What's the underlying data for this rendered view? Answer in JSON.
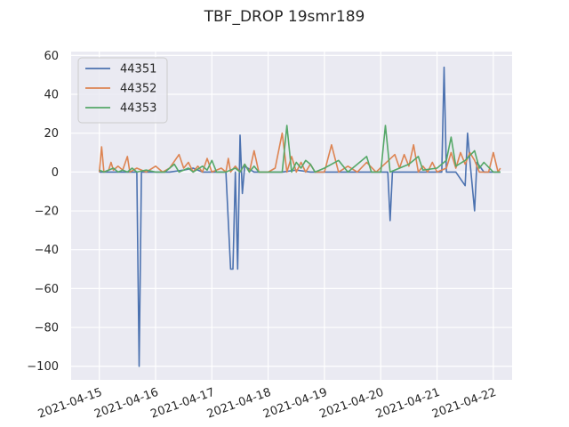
{
  "chart_data": {
    "type": "line",
    "title": "TBF_DROP 19smr189",
    "xlabel": "",
    "ylabel": "",
    "x_range": [
      "2021-04-14T12:00",
      "2021-04-22T08:00"
    ],
    "ylim": [
      -107,
      62
    ],
    "x_ticks": [
      "2021-04-15",
      "2021-04-16",
      "2021-04-17",
      "2021-04-18",
      "2021-04-19",
      "2021-04-20",
      "2021-04-21",
      "2021-04-22"
    ],
    "y_ticks": [
      60,
      40,
      20,
      0,
      -20,
      -40,
      -60,
      -80,
      -100
    ],
    "y_tick_labels": [
      "60",
      "40",
      "20",
      "0",
      "−20",
      "−40",
      "−60",
      "−80",
      "−100"
    ],
    "grid": true,
    "legend_position": "top-left",
    "background_color": "#eaeaf2",
    "series": [
      {
        "name": "44351",
        "color": "#4c72b0",
        "points": [
          [
            "2021-04-15T00:00",
            0
          ],
          [
            "2021-04-15T02:00",
            0
          ],
          [
            "2021-04-15T04:00",
            0
          ],
          [
            "2021-04-15T06:00",
            0
          ],
          [
            "2021-04-15T08:00",
            0
          ],
          [
            "2021-04-15T10:00",
            0
          ],
          [
            "2021-04-15T12:00",
            0
          ],
          [
            "2021-04-15T14:00",
            0
          ],
          [
            "2021-04-15T15:00",
            0
          ],
          [
            "2021-04-15T16:00",
            0
          ],
          [
            "2021-04-15T17:00",
            -100
          ],
          [
            "2021-04-15T18:00",
            0
          ],
          [
            "2021-04-15T20:00",
            0
          ],
          [
            "2021-04-16T00:00",
            0
          ],
          [
            "2021-04-16T06:00",
            0
          ],
          [
            "2021-04-16T12:00",
            1
          ],
          [
            "2021-04-16T16:00",
            2
          ],
          [
            "2021-04-16T20:00",
            0
          ],
          [
            "2021-04-17T00:00",
            0
          ],
          [
            "2021-04-17T06:00",
            0
          ],
          [
            "2021-04-17T08:00",
            -50
          ],
          [
            "2021-04-17T09:00",
            -50
          ],
          [
            "2021-04-17T10:00",
            0
          ],
          [
            "2021-04-17T11:00",
            -50
          ],
          [
            "2021-04-17T12:00",
            19
          ],
          [
            "2021-04-17T13:00",
            -11
          ],
          [
            "2021-04-17T14:00",
            3
          ],
          [
            "2021-04-17T18:00",
            0
          ],
          [
            "2021-04-18T00:00",
            0
          ],
          [
            "2021-04-18T06:00",
            0
          ],
          [
            "2021-04-18T12:00",
            1
          ],
          [
            "2021-04-18T18:00",
            0
          ],
          [
            "2021-04-19T00:00",
            0
          ],
          [
            "2021-04-19T12:00",
            0
          ],
          [
            "2021-04-20T00:00",
            0
          ],
          [
            "2021-04-20T03:00",
            0
          ],
          [
            "2021-04-20T04:00",
            -25
          ],
          [
            "2021-04-20T05:00",
            0
          ],
          [
            "2021-04-20T12:00",
            0
          ],
          [
            "2021-04-20T18:00",
            0
          ],
          [
            "2021-04-21T00:00",
            0
          ],
          [
            "2021-04-21T02:00",
            0
          ],
          [
            "2021-04-21T03:00",
            54
          ],
          [
            "2021-04-21T04:00",
            0
          ],
          [
            "2021-04-21T08:00",
            0
          ],
          [
            "2021-04-21T12:00",
            -7
          ],
          [
            "2021-04-21T13:00",
            20
          ],
          [
            "2021-04-21T14:00",
            6
          ],
          [
            "2021-04-21T16:00",
            -20
          ],
          [
            "2021-04-21T17:00",
            5
          ],
          [
            "2021-04-21T20:00",
            0
          ],
          [
            "2021-04-22T00:00",
            0
          ],
          [
            "2021-04-22T03:00",
            0
          ]
        ]
      },
      {
        "name": "44352",
        "color": "#dd8452",
        "points": [
          [
            "2021-04-15T00:00",
            0
          ],
          [
            "2021-04-15T01:00",
            13
          ],
          [
            "2021-04-15T02:00",
            0
          ],
          [
            "2021-04-15T04:00",
            1
          ],
          [
            "2021-04-15T05:00",
            5
          ],
          [
            "2021-04-15T06:00",
            1
          ],
          [
            "2021-04-15T08:00",
            3
          ],
          [
            "2021-04-15T10:00",
            1
          ],
          [
            "2021-04-15T12:00",
            8
          ],
          [
            "2021-04-15T13:00",
            0
          ],
          [
            "2021-04-15T16:00",
            2
          ],
          [
            "2021-04-15T20:00",
            0
          ],
          [
            "2021-04-16T00:00",
            3
          ],
          [
            "2021-04-16T03:00",
            0
          ],
          [
            "2021-04-16T06:00",
            2
          ],
          [
            "2021-04-16T10:00",
            9
          ],
          [
            "2021-04-16T12:00",
            2
          ],
          [
            "2021-04-16T14:00",
            5
          ],
          [
            "2021-04-16T16:00",
            0
          ],
          [
            "2021-04-16T18:00",
            3
          ],
          [
            "2021-04-16T20:00",
            0
          ],
          [
            "2021-04-16T22:00",
            7
          ],
          [
            "2021-04-17T00:00",
            0
          ],
          [
            "2021-04-17T04:00",
            2
          ],
          [
            "2021-04-17T06:00",
            0
          ],
          [
            "2021-04-17T07:00",
            7
          ],
          [
            "2021-04-17T08:00",
            0
          ],
          [
            "2021-04-17T10:00",
            3
          ],
          [
            "2021-04-17T12:00",
            0
          ],
          [
            "2021-04-17T14:00",
            4
          ],
          [
            "2021-04-17T16:00",
            0
          ],
          [
            "2021-04-17T18:00",
            11
          ],
          [
            "2021-04-17T20:00",
            0
          ],
          [
            "2021-04-18T00:00",
            0
          ],
          [
            "2021-04-18T03:00",
            2
          ],
          [
            "2021-04-18T06:00",
            20
          ],
          [
            "2021-04-18T08:00",
            0
          ],
          [
            "2021-04-18T10:00",
            8
          ],
          [
            "2021-04-18T12:00",
            0
          ],
          [
            "2021-04-18T14:00",
            5
          ],
          [
            "2021-04-18T16:00",
            0
          ],
          [
            "2021-04-18T18:00",
            4
          ],
          [
            "2021-04-18T20:00",
            0
          ],
          [
            "2021-04-19T00:00",
            0
          ],
          [
            "2021-04-19T03:00",
            14
          ],
          [
            "2021-04-19T06:00",
            0
          ],
          [
            "2021-04-19T10:00",
            3
          ],
          [
            "2021-04-19T14:00",
            0
          ],
          [
            "2021-04-19T18:00",
            5
          ],
          [
            "2021-04-19T22:00",
            0
          ],
          [
            "2021-04-20T06:00",
            9
          ],
          [
            "2021-04-20T08:00",
            2
          ],
          [
            "2021-04-20T10:00",
            9
          ],
          [
            "2021-04-20T12:00",
            3
          ],
          [
            "2021-04-20T14:00",
            14
          ],
          [
            "2021-04-20T16:00",
            0
          ],
          [
            "2021-04-20T18:00",
            3
          ],
          [
            "2021-04-20T20:00",
            0
          ],
          [
            "2021-04-20T22:00",
            5
          ],
          [
            "2021-04-21T00:00",
            0
          ],
          [
            "2021-04-21T04:00",
            2
          ],
          [
            "2021-04-21T06:00",
            10
          ],
          [
            "2021-04-21T08:00",
            2
          ],
          [
            "2021-04-21T10:00",
            10
          ],
          [
            "2021-04-21T12:00",
            4
          ],
          [
            "2021-04-21T14:00",
            10
          ],
          [
            "2021-04-21T16:00",
            6
          ],
          [
            "2021-04-21T18:00",
            0
          ],
          [
            "2021-04-21T22:00",
            0
          ],
          [
            "2021-04-22T00:00",
            10
          ],
          [
            "2021-04-22T02:00",
            0
          ],
          [
            "2021-04-22T03:00",
            2
          ]
        ]
      },
      {
        "name": "44353",
        "color": "#55a868",
        "points": [
          [
            "2021-04-15T00:00",
            1
          ],
          [
            "2021-04-15T02:00",
            0
          ],
          [
            "2021-04-15T04:00",
            1
          ],
          [
            "2021-04-15T06:00",
            2
          ],
          [
            "2021-04-15T08:00",
            0
          ],
          [
            "2021-04-15T10:00",
            1
          ],
          [
            "2021-04-15T12:00",
            0
          ],
          [
            "2021-04-15T14:00",
            2
          ],
          [
            "2021-04-15T16:00",
            0
          ],
          [
            "2021-04-15T20:00",
            1
          ],
          [
            "2021-04-16T00:00",
            0
          ],
          [
            "2021-04-16T04:00",
            0
          ],
          [
            "2021-04-16T08:00",
            4
          ],
          [
            "2021-04-16T10:00",
            0
          ],
          [
            "2021-04-16T14:00",
            2
          ],
          [
            "2021-04-16T16:00",
            0
          ],
          [
            "2021-04-16T20:00",
            3
          ],
          [
            "2021-04-16T22:00",
            1
          ],
          [
            "2021-04-17T00:00",
            6
          ],
          [
            "2021-04-17T02:00",
            0
          ],
          [
            "2021-04-17T06:00",
            0
          ],
          [
            "2021-04-17T10:00",
            2
          ],
          [
            "2021-04-17T12:00",
            0
          ],
          [
            "2021-04-17T14:00",
            4
          ],
          [
            "2021-04-17T16:00",
            0
          ],
          [
            "2021-04-17T18:00",
            3
          ],
          [
            "2021-04-17T20:00",
            0
          ],
          [
            "2021-04-18T00:00",
            0
          ],
          [
            "2021-04-18T06:00",
            0
          ],
          [
            "2021-04-18T08:00",
            24
          ],
          [
            "2021-04-18T10:00",
            0
          ],
          [
            "2021-04-18T12:00",
            5
          ],
          [
            "2021-04-18T14:00",
            2
          ],
          [
            "2021-04-18T16:00",
            6
          ],
          [
            "2021-04-18T18:00",
            4
          ],
          [
            "2021-04-18T20:00",
            0
          ],
          [
            "2021-04-19T00:00",
            2
          ],
          [
            "2021-04-19T06:00",
            6
          ],
          [
            "2021-04-19T10:00",
            0
          ],
          [
            "2021-04-19T14:00",
            4
          ],
          [
            "2021-04-19T18:00",
            8
          ],
          [
            "2021-04-19T20:00",
            0
          ],
          [
            "2021-04-20T00:00",
            0
          ],
          [
            "2021-04-20T02:00",
            24
          ],
          [
            "2021-04-20T04:00",
            0
          ],
          [
            "2021-04-20T08:00",
            2
          ],
          [
            "2021-04-20T12:00",
            4
          ],
          [
            "2021-04-20T16:00",
            8
          ],
          [
            "2021-04-20T18:00",
            1
          ],
          [
            "2021-04-21T00:00",
            2
          ],
          [
            "2021-04-21T04:00",
            6
          ],
          [
            "2021-04-21T06:00",
            18
          ],
          [
            "2021-04-21T08:00",
            3
          ],
          [
            "2021-04-21T12:00",
            6
          ],
          [
            "2021-04-21T16:00",
            11
          ],
          [
            "2021-04-21T18:00",
            2
          ],
          [
            "2021-04-21T20:00",
            5
          ],
          [
            "2021-04-22T00:00",
            0
          ],
          [
            "2021-04-22T03:00",
            0
          ]
        ]
      }
    ]
  }
}
